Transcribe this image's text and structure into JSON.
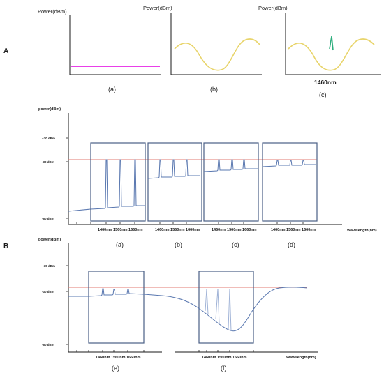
{
  "section_labels": {
    "a": "A",
    "b": "B"
  },
  "row_a": {
    "panels": [
      {
        "ylabel": "Power(dBm)",
        "caption": "(a)"
      },
      {
        "ylabel": "Power(dBm)",
        "caption": "(b)"
      },
      {
        "ylabel": "Power(dBm)",
        "caption": "(c)",
        "marker": "1460nm"
      }
    ]
  },
  "row_b1": {
    "ylabel": "power(dBm)",
    "y_ticks": [
      "+30 dBm",
      "-30 dBm",
      "-60 dBm"
    ],
    "xlabel": "Wavelength(nm)",
    "box_ticks": "1460nm 1560nm 1660nm",
    "captions": [
      "(a)",
      "(b)",
      "(c)",
      "(d)"
    ]
  },
  "row_b2": {
    "ylabel": "power(dBm)",
    "y_ticks": [
      "+30 dBm",
      "-30 dBm",
      "-60 dBm"
    ],
    "xlabel": "Wavelength(nm)",
    "box_ticks": "1460nm 1560nm 1660nm",
    "captions": [
      "(e)",
      "(f)"
    ]
  },
  "colors": {
    "axis": "#1a1a1a",
    "flat_line": "#e000e0",
    "sine": "#e8d46a",
    "spike_green": "#2fae7e",
    "trace": "#5a78b0",
    "threshold": "#e07a70",
    "box": "#4a5f85"
  }
}
